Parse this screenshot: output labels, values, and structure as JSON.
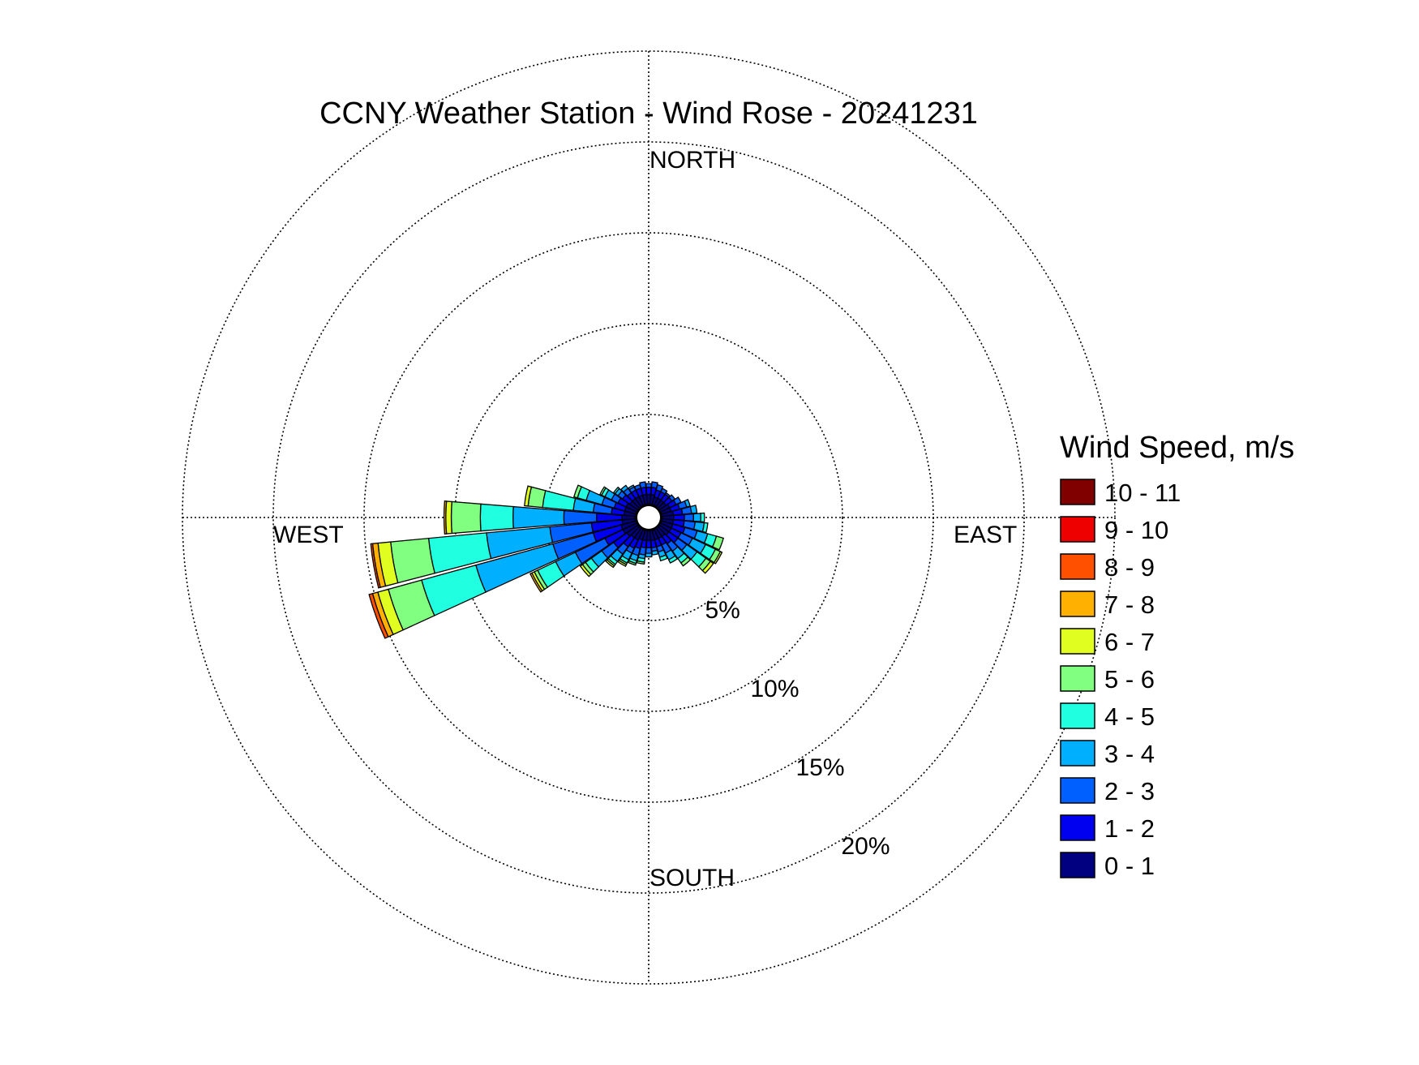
{
  "chart_data": {
    "type": "wind-rose",
    "title": "CCNY Weather Station - Wind Rose - 20241231",
    "legend": {
      "title": "Wind Speed, m/s",
      "placement": "right",
      "bins": [
        {
          "label": "10 - 11",
          "color": "#800000"
        },
        {
          "label": "9 - 10",
          "color": "#ee0000"
        },
        {
          "label": "8 - 9",
          "color": "#ff5000"
        },
        {
          "label": "7 - 8",
          "color": "#ffb000"
        },
        {
          "label": "6 - 7",
          "color": "#e0ff20"
        },
        {
          "label": "5 - 6",
          "color": "#80ff80"
        },
        {
          "label": "4 - 5",
          "color": "#20ffe0"
        },
        {
          "label": "3 - 4",
          "color": "#00b0ff"
        },
        {
          "label": "2 - 3",
          "color": "#0060ff"
        },
        {
          "label": "1 - 2",
          "color": "#0000f0"
        },
        {
          "label": "0 - 1",
          "color": "#000080"
        }
      ]
    },
    "direction_labels": [
      "NORTH",
      "EAST",
      "SOUTH",
      "WEST"
    ],
    "radial_axis": {
      "unit": "%",
      "max": 25,
      "ticks": [
        5,
        10,
        15,
        20
      ],
      "tick_labels": [
        "5%",
        "10%",
        "15%",
        "20%"
      ],
      "label_angle_deg": 150
    },
    "grid": true,
    "sector_width_deg": 10,
    "sectors": [
      {
        "dir": 0,
        "cum": [
          0.6,
          1.0,
          1.2
        ]
      },
      {
        "dir": 10,
        "cum": [
          0.6,
          1.0,
          1.3
        ]
      },
      {
        "dir": 20,
        "cum": [
          0.5,
          0.9,
          1.2
        ]
      },
      {
        "dir": 30,
        "cum": [
          0.5,
          0.9,
          1.1
        ]
      },
      {
        "dir": 40,
        "cum": [
          0.5,
          0.9,
          1.0
        ]
      },
      {
        "dir": 50,
        "cum": [
          0.5,
          0.9,
          1.1
        ]
      },
      {
        "dir": 60,
        "cum": [
          0.6,
          1.0,
          1.3
        ]
      },
      {
        "dir": 70,
        "cum": [
          0.6,
          1.1,
          1.5,
          1.7
        ]
      },
      {
        "dir": 80,
        "cum": [
          0.7,
          1.2,
          1.7,
          2.0
        ]
      },
      {
        "dir": 90,
        "cum": [
          0.7,
          1.3,
          1.8,
          2.2,
          2.4
        ]
      },
      {
        "dir": 100,
        "cum": [
          0.7,
          1.3,
          1.9,
          2.4,
          2.6
        ]
      },
      {
        "dir": 110,
        "cum": [
          0.7,
          1.4,
          2.1,
          2.7,
          3.2,
          3.6
        ]
      },
      {
        "dir": 120,
        "cum": [
          0.7,
          1.3,
          2.0,
          2.8,
          3.4,
          3.7,
          3.8
        ]
      },
      {
        "dir": 130,
        "cum": [
          0.7,
          1.3,
          1.9,
          2.6,
          3.2,
          3.5,
          3.7
        ]
      },
      {
        "dir": 140,
        "cum": [
          0.6,
          1.1,
          1.6,
          2.1,
          2.4,
          2.6
        ]
      },
      {
        "dir": 150,
        "cum": [
          0.6,
          1.0,
          1.5,
          1.9,
          2.1
        ]
      },
      {
        "dir": 160,
        "cum": [
          0.6,
          1.0,
          1.3,
          1.6,
          1.8
        ]
      },
      {
        "dir": 170,
        "cum": [
          0.6,
          1.0,
          1.2,
          1.4
        ]
      },
      {
        "dir": 180,
        "cum": [
          0.6,
          1.0,
          1.3,
          1.5
        ]
      },
      {
        "dir": 190,
        "cum": [
          0.6,
          1.0,
          1.4,
          1.6,
          1.8,
          1.9
        ]
      },
      {
        "dir": 200,
        "cum": [
          0.6,
          1.1,
          1.5,
          1.8,
          1.95,
          2.05
        ]
      },
      {
        "dir": 210,
        "cum": [
          0.7,
          1.2,
          1.5,
          1.9,
          2.1,
          2.2,
          2.3
        ]
      },
      {
        "dir": 220,
        "cum": [
          0.7,
          1.3,
          1.8,
          2.3,
          2.5,
          2.6,
          2.7
        ]
      },
      {
        "dir": 230,
        "cum": [
          0.8,
          1.7,
          2.5,
          3.2,
          3.6,
          3.8,
          3.95
        ]
      },
      {
        "dir": 240,
        "cum": [
          0.9,
          2.0,
          3.8,
          5.0,
          6.1,
          6.3,
          6.45,
          6.55
        ]
      },
      {
        "dir": 250,
        "cum": [
          0.9,
          2.5,
          4.8,
          9.2,
          12.3,
          14.2,
          14.8,
          15.1,
          15.3
        ]
      },
      {
        "dir": 260,
        "cum": [
          0.8,
          2.5,
          4.8,
          8.3,
          11.5,
          13.6,
          14.3,
          14.6,
          14.7
        ]
      },
      {
        "dir": 270,
        "cum": [
          0.8,
          2.2,
          4.0,
          6.8,
          8.6,
          10.2,
          10.5,
          10.6
        ]
      },
      {
        "dir": 280,
        "cum": [
          0.7,
          1.4,
          2.4,
          3.5,
          5.2,
          6.0,
          6.2
        ]
      },
      {
        "dir": 290,
        "cum": [
          0.7,
          1.3,
          2.0,
          2.9,
          3.4,
          3.6
        ]
      },
      {
        "dir": 300,
        "cum": [
          0.7,
          1.2,
          1.6,
          2.0,
          2.2,
          2.3
        ]
      },
      {
        "dir": 310,
        "cum": [
          0.6,
          1.1,
          1.4,
          1.6,
          1.7
        ]
      },
      {
        "dir": 320,
        "cum": [
          0.6,
          1.0,
          1.3,
          1.5
        ]
      },
      {
        "dir": 330,
        "cum": [
          0.6,
          1.0,
          1.2,
          1.3
        ]
      },
      {
        "dir": 340,
        "cum": [
          0.6,
          1.0,
          1.2
        ]
      },
      {
        "dir": 350,
        "cum": [
          0.6,
          1.0,
          1.3
        ]
      }
    ]
  }
}
